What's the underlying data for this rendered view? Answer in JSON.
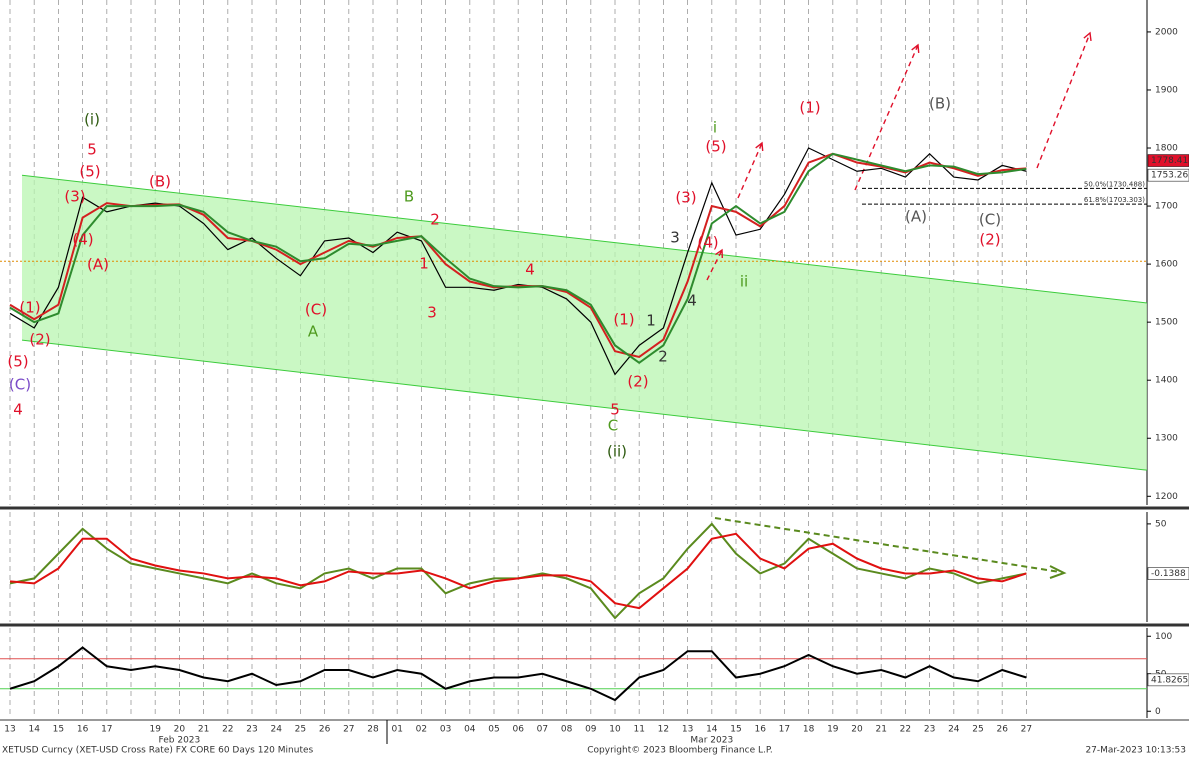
{
  "chart_data": [
    {
      "type": "line",
      "title": "XETUSD Curncy (XET-USD Cross Rate) FX CORE 60 Days 120 Minutes",
      "categories": [
        "13",
        "14",
        "15",
        "16",
        "17",
        null,
        "19",
        "20",
        "21",
        "22",
        "23",
        "24",
        "25",
        "26",
        "27",
        "28",
        "01",
        "02",
        "03",
        "04",
        "05",
        "06",
        "07",
        "08",
        "09",
        "10",
        "11",
        "12",
        "13",
        "14",
        "15",
        "16",
        "17",
        "18",
        "19",
        "20",
        "21",
        "22",
        "23",
        "24",
        "25",
        "26",
        "27"
      ],
      "month_labels": [
        "Feb 2023",
        "Mar 2023"
      ],
      "ylim": [
        1185,
        2055
      ],
      "yticks": [
        1200,
        1300,
        1400,
        1500,
        1600,
        1700,
        1800,
        1900,
        2000
      ],
      "series": [
        {
          "color": "#000000",
          "values": [
            1515,
            1490,
            1560,
            1715,
            1690,
            1700,
            1705,
            1700,
            1670,
            1625,
            1645,
            1610,
            1580,
            1640,
            1645,
            1620,
            1655,
            1640,
            1560,
            1560,
            1555,
            1565,
            1560,
            1540,
            1500,
            1410,
            1460,
            1490,
            1620,
            1740,
            1650,
            1660,
            1720,
            1800,
            1780,
            1760,
            1765,
            1750,
            1790,
            1750,
            1745,
            1770,
            1760
          ]
        },
        {
          "color": "#d42020",
          "values": [
            1530,
            1505,
            1530,
            1680,
            1705,
            1700,
            1702,
            1703,
            1685,
            1645,
            1640,
            1625,
            1600,
            1620,
            1640,
            1630,
            1645,
            1648,
            1600,
            1570,
            1560,
            1562,
            1562,
            1552,
            1525,
            1450,
            1440,
            1470,
            1570,
            1700,
            1690,
            1665,
            1700,
            1775,
            1790,
            1775,
            1768,
            1758,
            1775,
            1765,
            1752,
            1762,
            1765
          ]
        },
        {
          "color": "#2e8b2e",
          "values": [
            1525,
            1500,
            1515,
            1650,
            1700,
            1700,
            1700,
            1702,
            1690,
            1655,
            1640,
            1630,
            1605,
            1610,
            1635,
            1632,
            1640,
            1648,
            1610,
            1575,
            1562,
            1560,
            1562,
            1555,
            1530,
            1460,
            1430,
            1460,
            1540,
            1670,
            1700,
            1670,
            1690,
            1760,
            1790,
            1780,
            1770,
            1760,
            1770,
            1768,
            1755,
            1758,
            1764
          ]
        }
      ],
      "channel": {
        "upper": [
          1753,
          1533
        ],
        "lower": [
          1469,
          1245
        ]
      },
      "support_level": 1605,
      "fib_levels": [
        {
          "value": 1730.488,
          "label": "50.0%(1730.488)"
        },
        {
          "value": 1703.303,
          "label": "61.8%(1703.303)"
        }
      ],
      "last_labels": [
        {
          "value": 1778.413,
          "color": "#e0102a"
        },
        {
          "value": 1753.265,
          "color": "#ffffff"
        }
      ],
      "annotations": [
        {
          "text": "(i)",
          "color": "#2e5a10"
        },
        {
          "text": "5",
          "color": "#e0102a"
        },
        {
          "text": "4",
          "color": "#e0102a"
        },
        {
          "text": "(C)",
          "color": "#7a4bc8"
        },
        {
          "text": "(5)",
          "color": "#e0102a"
        },
        {
          "text": "(1)",
          "color": "#e0102a"
        },
        {
          "text": "(2)",
          "color": "#e0102a"
        },
        {
          "text": "(3)",
          "color": "#e0102a"
        },
        {
          "text": "(5)",
          "color": "#e0102a"
        },
        {
          "text": "(4)",
          "color": "#e0102a"
        },
        {
          "text": "(A)",
          "color": "#e0102a"
        },
        {
          "text": "(B)",
          "color": "#e0102a"
        },
        {
          "text": "(C)",
          "color": "#e0102a"
        },
        {
          "text": "A",
          "color": "#4e9a1e"
        },
        {
          "text": "B",
          "color": "#4e9a1e"
        },
        {
          "text": "2",
          "color": "#e0102a"
        },
        {
          "text": "1",
          "color": "#e0102a"
        },
        {
          "text": "3",
          "color": "#e0102a"
        },
        {
          "text": "4",
          "color": "#e0102a"
        },
        {
          "text": "(1)",
          "color": "#e0102a"
        },
        {
          "text": "1",
          "color": "#333333"
        },
        {
          "text": "2",
          "color": "#333333"
        },
        {
          "text": "(2)",
          "color": "#e0102a"
        },
        {
          "text": "5",
          "color": "#e0102a"
        },
        {
          "text": "C",
          "color": "#4e9a1e"
        },
        {
          "text": "(ii)",
          "color": "#2e5a10"
        },
        {
          "text": "3",
          "color": "#333333"
        },
        {
          "text": "(3)",
          "color": "#e0102a"
        },
        {
          "text": "(4)",
          "color": "#e0102a"
        },
        {
          "text": "4",
          "color": "#333333"
        },
        {
          "text": "i",
          "color": "#4e9a1e"
        },
        {
          "text": "(5)",
          "color": "#e0102a"
        },
        {
          "text": "ii",
          "color": "#4e9a1e"
        },
        {
          "text": "(1)",
          "color": "#e0102a"
        },
        {
          "text": "(B)",
          "color": "#555555"
        },
        {
          "text": "(A)",
          "color": "#555555"
        },
        {
          "text": "(C)",
          "color": "#555555"
        },
        {
          "text": "(2)",
          "color": "#e0102a"
        }
      ]
    },
    {
      "type": "line",
      "ylim": [
        -49,
        62
      ],
      "yticks": [
        50
      ],
      "series": [
        {
          "color": "#5a8a1e",
          "values": [
            -10,
            -5,
            20,
            45,
            25,
            10,
            5,
            0,
            -5,
            -10,
            0,
            -10,
            -15,
            0,
            5,
            -5,
            5,
            5,
            -20,
            -10,
            -5,
            -5,
            0,
            -5,
            -15,
            -45,
            -20,
            -5,
            25,
            50,
            20,
            0,
            10,
            35,
            20,
            5,
            0,
            -5,
            5,
            0,
            -10,
            -5,
            0
          ]
        },
        {
          "color": "#e01010",
          "values": [
            -8,
            -10,
            5,
            35,
            35,
            15,
            8,
            3,
            0,
            -5,
            -3,
            -5,
            -12,
            -8,
            2,
            0,
            0,
            3,
            -5,
            -15,
            -8,
            -5,
            -2,
            -2,
            -8,
            -30,
            -35,
            -15,
            5,
            35,
            40,
            15,
            5,
            25,
            30,
            15,
            5,
            0,
            0,
            3,
            -5,
            -8,
            0
          ]
        }
      ],
      "last_label": -0.1388
    },
    {
      "type": "line",
      "ylim": [
        -9,
        111
      ],
      "yticks": [
        0,
        50,
        100
      ],
      "levels": [
        {
          "value": 70,
          "color": "#e05050"
        },
        {
          "value": 30,
          "color": "#50d050"
        }
      ],
      "series": [
        {
          "color": "#000000",
          "values": [
            30,
            40,
            60,
            85,
            60,
            55,
            60,
            55,
            45,
            40,
            50,
            35,
            40,
            55,
            55,
            45,
            55,
            50,
            30,
            40,
            45,
            45,
            50,
            40,
            30,
            15,
            45,
            55,
            80,
            80,
            45,
            50,
            60,
            75,
            60,
            50,
            55,
            45,
            60,
            45,
            40,
            55,
            45
          ]
        }
      ],
      "last_label": 41.8265
    }
  ],
  "footer": {
    "copyright": "Copyright© 2023 Bloomberg Finance L.P.",
    "timestamp": "27-Mar-2023 10:13:53"
  }
}
